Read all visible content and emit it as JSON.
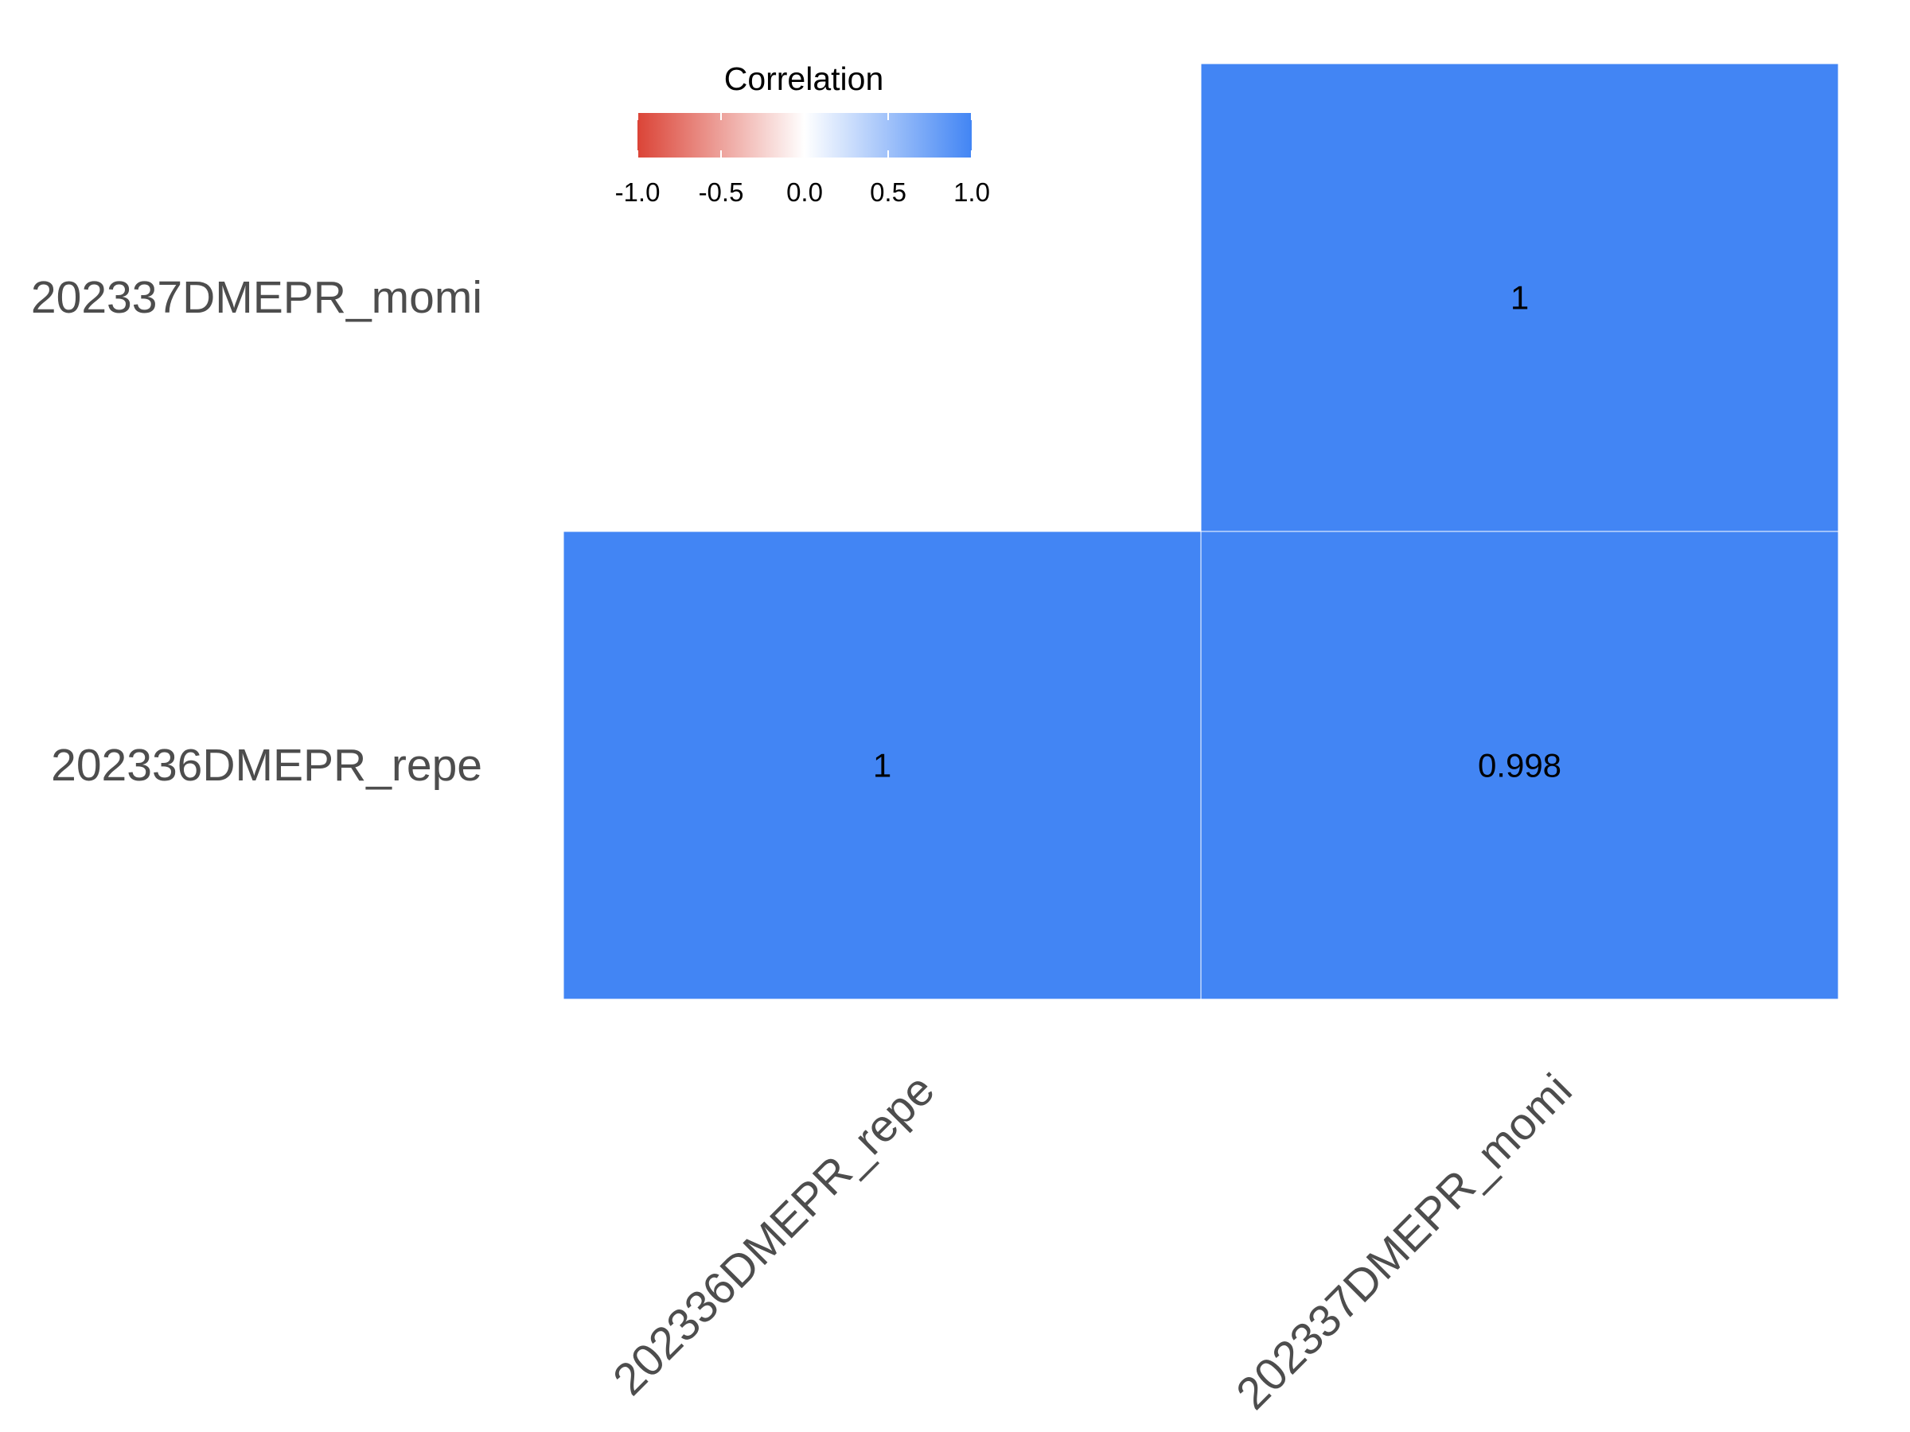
{
  "chart_data": {
    "type": "heatmap",
    "title": "",
    "xlabel": "",
    "ylabel": "",
    "x_categories": [
      "202336DMEPR_repe",
      "202337DMEPR_momi"
    ],
    "y_categories": [
      "202336DMEPR_repe",
      "202337DMEPR_momi"
    ],
    "cells": [
      {
        "x": "202336DMEPR_repe",
        "y": "202336DMEPR_repe",
        "value": 1,
        "label": "1"
      },
      {
        "x": "202337DMEPR_momi",
        "y": "202336DMEPR_repe",
        "value": 0.998,
        "label": "0.998"
      },
      {
        "x": "202337DMEPR_momi",
        "y": "202337DMEPR_momi",
        "value": 1,
        "label": "1"
      }
    ],
    "legend": {
      "title": "Correlation",
      "range": [
        -1,
        1
      ],
      "ticks": [
        -1.0,
        -0.5,
        0.0,
        0.5,
        1.0
      ],
      "tick_labels": [
        "-1.0",
        "-0.5",
        "0.0",
        "0.5",
        "1.0"
      ],
      "placement": "top-left",
      "colors": {
        "low": "#db4437",
        "mid": "#ffffff",
        "high": "#4285f4"
      }
    },
    "grid": false
  }
}
